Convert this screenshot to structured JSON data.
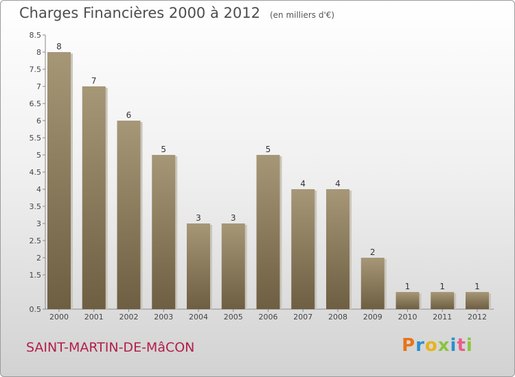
{
  "title": "Charges Financières 2000 à 2012",
  "unit": "(en milliers d'€)",
  "town": "SAINT-MARTIN-DE-MâCON",
  "logo": {
    "p": "P",
    "r": "r",
    "o": "o",
    "x": "x",
    "i": "i",
    "t": "t",
    "i2": "i"
  },
  "chart_data": {
    "type": "bar",
    "categories": [
      "2000",
      "2001",
      "2002",
      "2003",
      "2004",
      "2005",
      "2006",
      "2007",
      "2008",
      "2009",
      "2010",
      "2011",
      "2012"
    ],
    "values": [
      8,
      7,
      6,
      5,
      3,
      3,
      5,
      4,
      4,
      2,
      1,
      1,
      1
    ],
    "data_labels": [
      "8",
      "7",
      "6",
      "5",
      "3",
      "3",
      "5",
      "4",
      "4",
      "2",
      "1",
      "1",
      "1"
    ],
    "ylim": [
      0.5,
      8.5
    ],
    "yticks": [
      "0.5",
      "1.5",
      "2",
      "2.5",
      "3",
      "3.5",
      "4",
      "4.5",
      "5",
      "5.5",
      "6",
      "6.5",
      "7",
      "7.5",
      "8",
      "8.5"
    ],
    "ytick_values": [
      0.5,
      1.5,
      2,
      2.5,
      3,
      3.5,
      4,
      4.5,
      5,
      5.5,
      6,
      6.5,
      7,
      7.5,
      8,
      8.5
    ],
    "bar_color": "#8a7a5e",
    "grid": false
  }
}
